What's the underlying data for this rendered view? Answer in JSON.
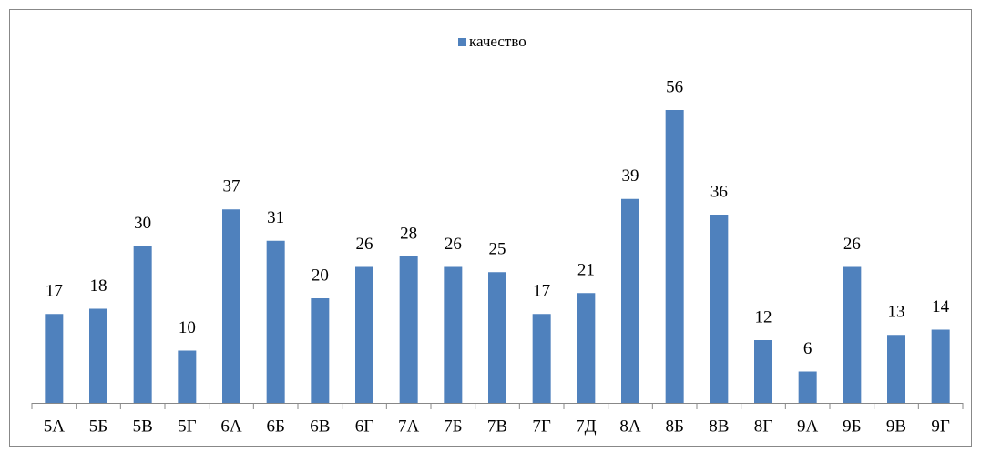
{
  "chart_data": {
    "type": "bar",
    "categories": [
      "5А",
      "5Б",
      "5В",
      "5Г",
      "6А",
      "6Б",
      "6В",
      "6Г",
      "7А",
      "7Б",
      "7В",
      "7Г",
      "7Д",
      "8А",
      "8Б",
      "8В",
      "8Г",
      "9А",
      "9Б",
      "9В",
      "9Г"
    ],
    "series": [
      {
        "name": "качество",
        "color": "#4f81bd",
        "values": [
          17,
          18,
          30,
          10,
          37,
          31,
          20,
          26,
          28,
          26,
          25,
          17,
          21,
          39,
          56,
          36,
          12,
          6,
          26,
          13,
          14
        ]
      }
    ],
    "legend": "top"
  }
}
